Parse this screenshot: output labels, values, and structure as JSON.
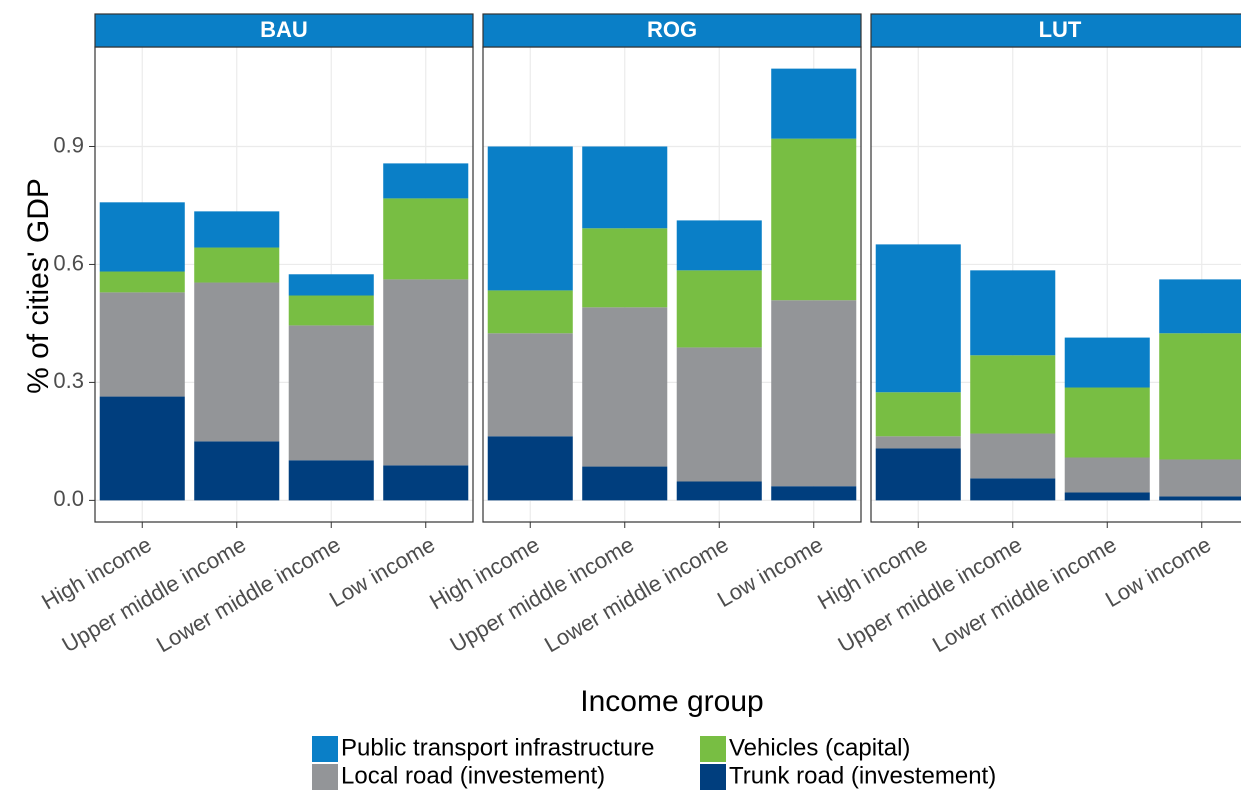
{
  "chart_data": {
    "type": "bar",
    "stacked": true,
    "y_label": "% of cities' GDP",
    "x_label": "Income group",
    "categories": [
      "High income",
      "Upper middle income",
      "Lower middle income",
      "Low income"
    ],
    "series": [
      {
        "name": "Public transport infrastructure",
        "color": "#0a7fc7"
      },
      {
        "name": "Vehicles (capital)",
        "color": "#78be43"
      },
      {
        "name": "Local road (investement)",
        "color": "#939598"
      },
      {
        "name": "Trunk road (investement)",
        "color": "#003e7e"
      }
    ],
    "facets": [
      {
        "title": "BAU",
        "values": [
          [
            0.176,
            0.092,
            0.054,
            0.089
          ],
          [
            0.053,
            0.089,
            0.076,
            0.206
          ],
          [
            0.265,
            0.404,
            0.343,
            0.473
          ],
          [
            0.264,
            0.15,
            0.102,
            0.089
          ]
        ]
      },
      {
        "title": "ROG",
        "values": [
          [
            0.366,
            0.208,
            0.127,
            0.178
          ],
          [
            0.109,
            0.201,
            0.196,
            0.411
          ],
          [
            0.262,
            0.405,
            0.341,
            0.473
          ],
          [
            0.163,
            0.086,
            0.048,
            0.036
          ]
        ]
      },
      {
        "title": "LUT",
        "values": [
          [
            0.376,
            0.216,
            0.127,
            0.137
          ],
          [
            0.112,
            0.199,
            0.178,
            0.321
          ],
          [
            0.031,
            0.114,
            0.089,
            0.094
          ],
          [
            0.132,
            0.056,
            0.02,
            0.01
          ]
        ]
      }
    ],
    "ylim": [
      -0.055,
      1.153
    ],
    "yticks": [
      {
        "value": 0,
        "label": "0.0"
      },
      0.3,
      0.6,
      0.9
    ],
    "grid": true,
    "legend": "bottom"
  }
}
